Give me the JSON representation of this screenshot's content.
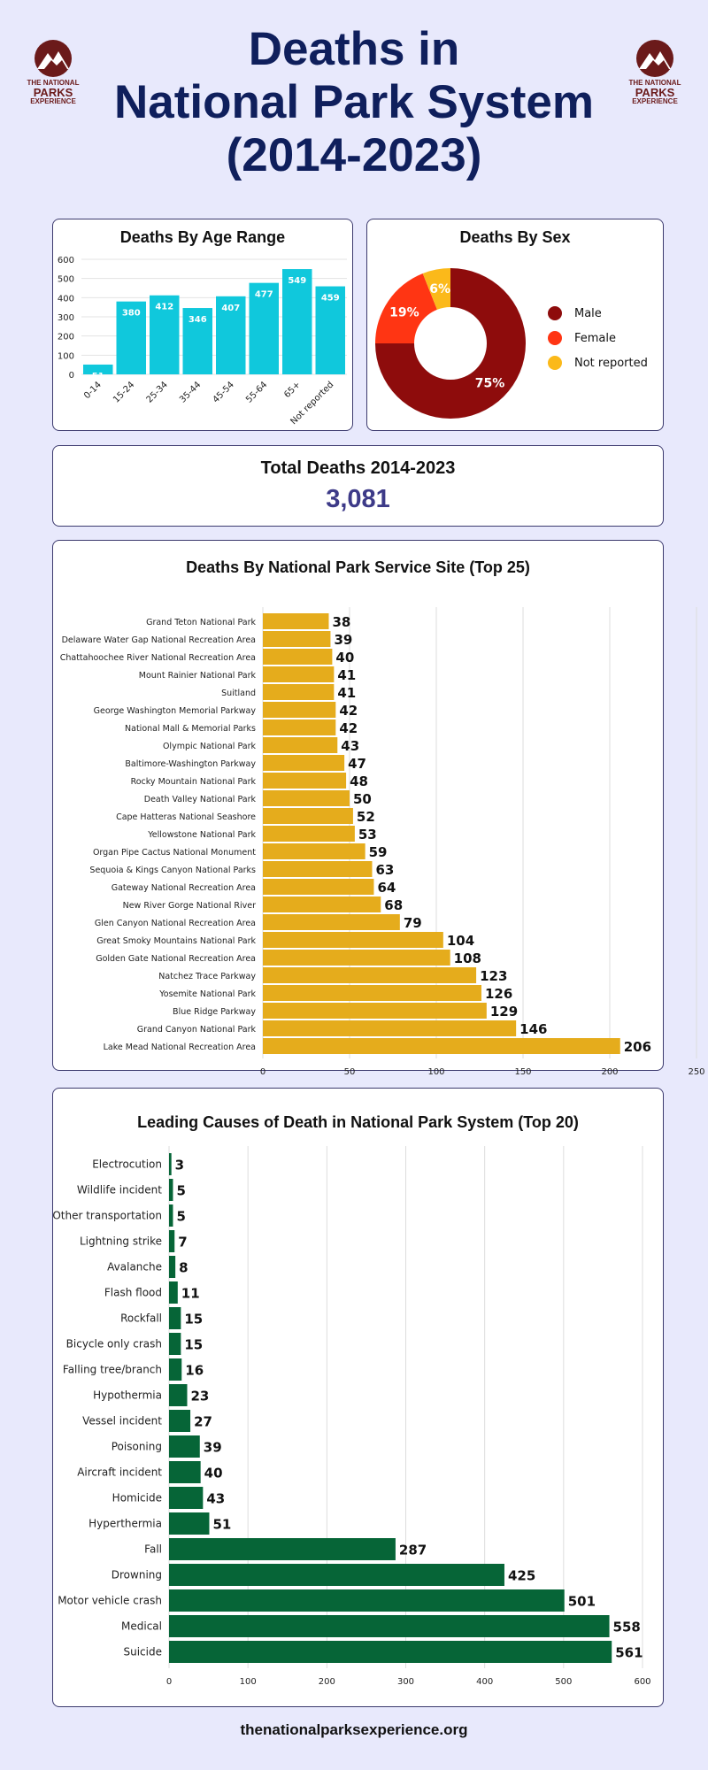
{
  "header": {
    "title_lines": [
      "Deaths in",
      "National Park System",
      "(2014-2023)"
    ],
    "logo": {
      "line1": "THE NATIONAL",
      "line2": "PARKS",
      "line3": "EXPERIENCE"
    }
  },
  "age_card": {
    "title": "Deaths By Age Range"
  },
  "sex_card": {
    "title": "Deaths By Sex"
  },
  "total_card": {
    "label": "Total Deaths 2014-2023",
    "value": "3,081"
  },
  "site_card": {
    "title": "Deaths By National Park Service Site (Top 25)"
  },
  "cause_card": {
    "title": "Leading Causes of Death in National Park System (Top 20)"
  },
  "footer": {
    "url": "thenationalparksexperience.org"
  },
  "colors": {
    "age_bar": "#10c8dc",
    "male": "#8e0c0c",
    "female": "#ff3513",
    "not_reported": "#fbb91a",
    "site_bar": "#e5ac1c",
    "cause_bar": "#066537",
    "title_navy": "#0f1f5c",
    "total_value": "#3d3a88"
  },
  "chart_data": [
    {
      "type": "bar",
      "title": "Deaths By Age Range",
      "categories": [
        "0-14",
        "15-24",
        "25-34",
        "35-44",
        "45-54",
        "55-64",
        "65+",
        "Not reported"
      ],
      "values": [
        51,
        380,
        412,
        346,
        407,
        477,
        549,
        459
      ],
      "yticks": [
        0,
        100,
        200,
        300,
        400,
        500,
        600
      ],
      "ylim": [
        0,
        600
      ],
      "grid": true
    },
    {
      "type": "pie",
      "title": "Deaths By Sex",
      "categories": [
        "Male",
        "Female",
        "Not reported"
      ],
      "values": [
        75,
        19,
        6
      ],
      "labels": [
        "75%",
        "19%",
        "6%"
      ],
      "legend": "right"
    },
    {
      "type": "bar",
      "orientation": "horizontal",
      "title": "Deaths By National Park Service Site (Top 25)",
      "categories": [
        "Grand Teton National Park",
        "Delaware Water Gap National Recreation Area",
        "Chattahoochee River National Recreation Area",
        "Mount Rainier National Park",
        "Suitland",
        "George Washington Memorial Parkway",
        "National Mall & Memorial Parks",
        "Olympic National Park",
        "Baltimore-Washington Parkway",
        "Rocky Mountain National Park",
        "Death Valley National Park",
        "Cape Hatteras National Seashore",
        "Yellowstone National Park",
        "Organ Pipe Cactus National Monument",
        "Sequoia & Kings Canyon National Parks",
        "Gateway National Recreation Area",
        "New River Gorge National River",
        "Glen Canyon National Recreation Area",
        "Great Smoky Mountains National Park",
        "Golden Gate National Recreation Area",
        "Natchez Trace Parkway",
        "Yosemite National Park",
        "Blue Ridge Parkway",
        "Grand Canyon National Park",
        "Lake Mead National Recreation Area"
      ],
      "values": [
        38,
        39,
        40,
        41,
        41,
        42,
        42,
        43,
        47,
        48,
        50,
        52,
        53,
        59,
        63,
        64,
        68,
        79,
        104,
        108,
        123,
        126,
        129,
        146,
        206
      ],
      "xticks": [
        0,
        50,
        100,
        150,
        200,
        250
      ],
      "xlim": [
        0,
        250
      ],
      "grid": true
    },
    {
      "type": "bar",
      "orientation": "horizontal",
      "title": "Leading Causes of Death in National Park System (Top 20)",
      "categories": [
        "Electrocution",
        "Wildlife incident",
        "Other transportation",
        "Lightning strike",
        "Avalanche",
        "Flash flood",
        "Rockfall",
        "Bicycle only crash",
        "Falling tree/branch",
        "Hypothermia",
        "Vessel incident",
        "Poisoning",
        "Aircraft incident",
        "Homicide",
        "Hyperthermia",
        "Fall",
        "Drowning",
        "Motor vehicle crash",
        "Medical",
        "Suicide"
      ],
      "values": [
        3,
        5,
        5,
        7,
        8,
        11,
        15,
        15,
        16,
        23,
        27,
        39,
        40,
        43,
        51,
        287,
        425,
        501,
        558,
        561
      ],
      "xticks": [
        0,
        100,
        200,
        300,
        400,
        500,
        600
      ],
      "xlim": [
        0,
        600
      ],
      "grid": true
    }
  ]
}
